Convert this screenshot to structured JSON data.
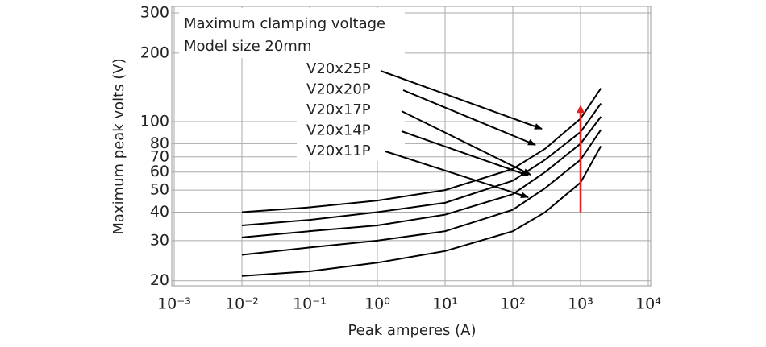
{
  "chart_data": {
    "type": "line",
    "title": "Maximum clamping voltage",
    "subtitle": "Model size 20mm",
    "x_label": "Peak amperes (A)",
    "y_label": "Maximum peak volts (V)",
    "log_x": true,
    "log_y": true,
    "grid": true,
    "xlim": [
      0.001,
      10000
    ],
    "ylim": [
      19,
      310
    ],
    "xticks": [
      {
        "value": 0.001,
        "label": "10⁻³"
      },
      {
        "value": 0.01,
        "label": "10⁻²"
      },
      {
        "value": 0.1,
        "label": "10⁻¹"
      },
      {
        "value": 1,
        "label": "10⁰"
      },
      {
        "value": 10,
        "label": "10¹"
      },
      {
        "value": 100,
        "label": "10²"
      },
      {
        "value": 1000,
        "label": "10³"
      },
      {
        "value": 10000,
        "label": "10⁴"
      }
    ],
    "yticks": [
      20,
      30,
      40,
      50,
      60,
      70,
      80,
      100,
      200,
      300
    ],
    "x": [
      0.01,
      0.1,
      1,
      10,
      100,
      300,
      1000,
      2000
    ],
    "series": [
      {
        "name": "V20x25P",
        "color": "#000000",
        "values": [
          40,
          42,
          45,
          50,
          62,
          76,
          103,
          140
        ]
      },
      {
        "name": "V20x20P",
        "color": "#000000",
        "values": [
          35,
          37,
          40,
          44,
          55,
          68,
          90,
          120
        ]
      },
      {
        "name": "V20x17P",
        "color": "#000000",
        "values": [
          31,
          33,
          35,
          39,
          48,
          60,
          80,
          105
        ]
      },
      {
        "name": "V20x14P",
        "color": "#000000",
        "values": [
          26,
          28,
          30,
          33,
          41,
          51,
          68,
          92
        ]
      },
      {
        "name": "V20x11P",
        "color": "#000000",
        "values": [
          21,
          22,
          24,
          27,
          33,
          40,
          54,
          78
        ]
      }
    ],
    "marker_line": {
      "x": 1000,
      "y": [
        40,
        110
      ],
      "color": "#e02020"
    }
  }
}
